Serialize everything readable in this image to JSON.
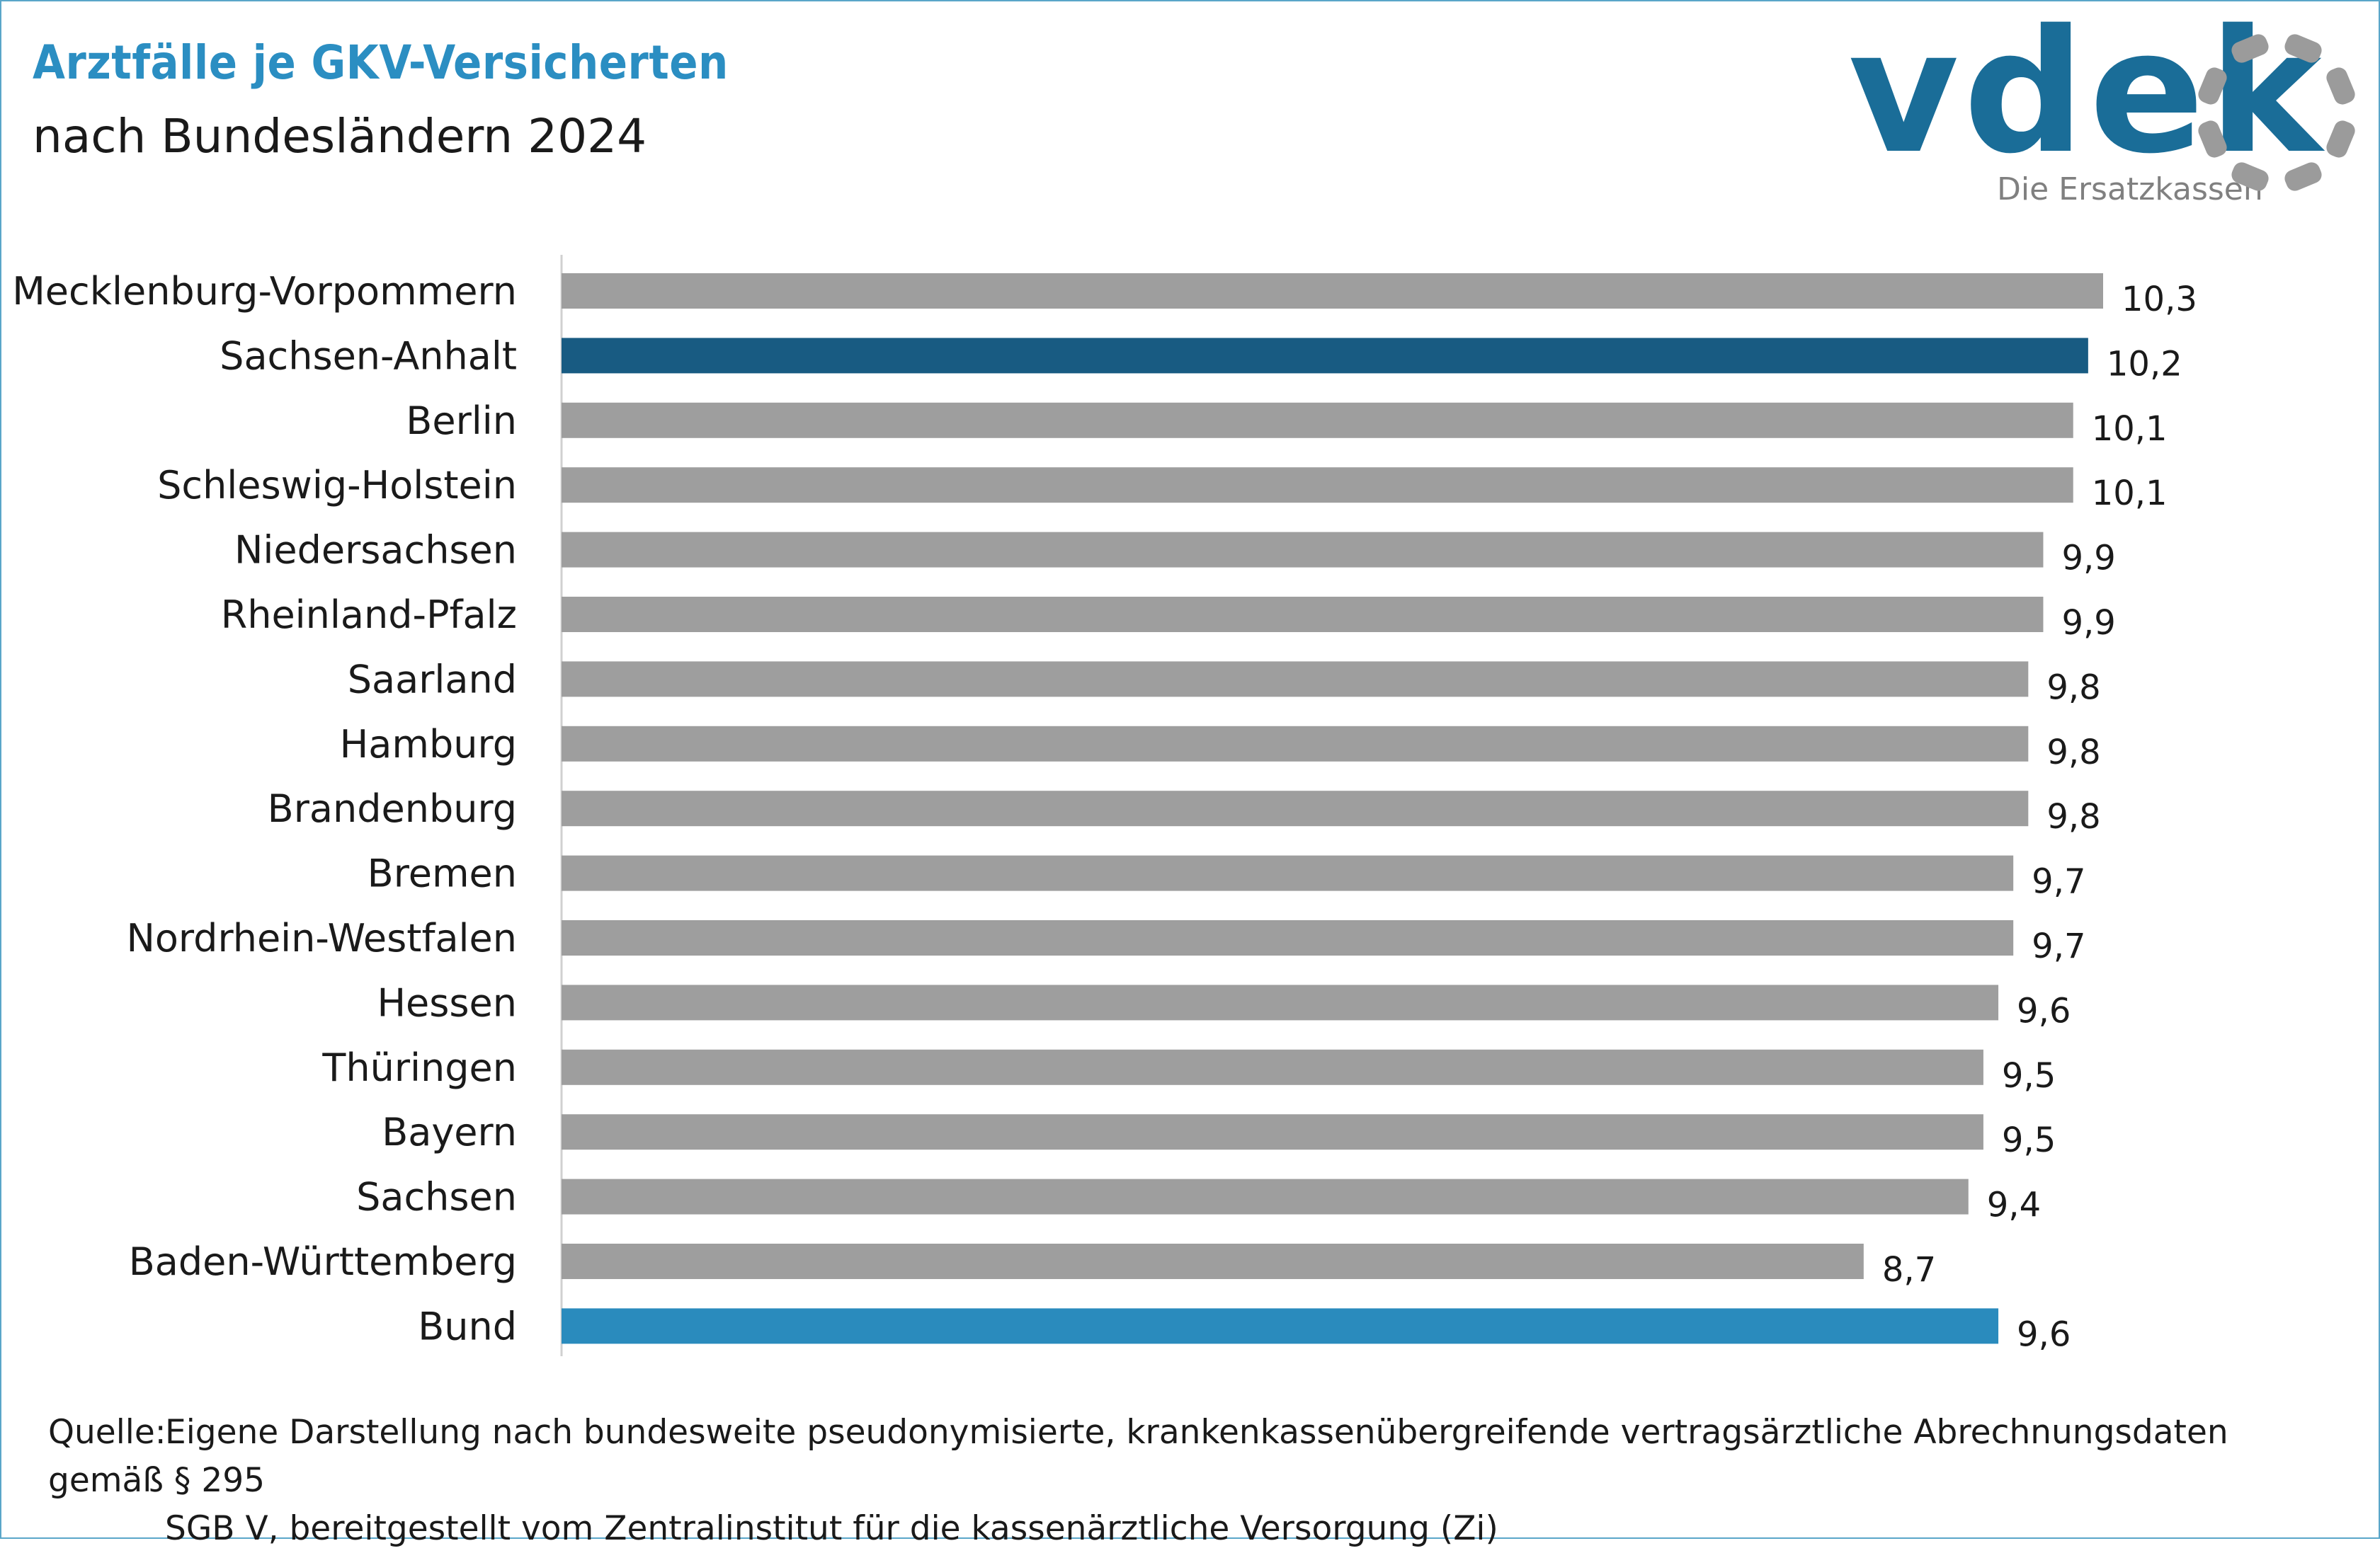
{
  "header": {
    "title": "Arztfälle je GKV-Versicherten",
    "subtitle": "nach Bundesländern 2024"
  },
  "logo": {
    "wordmark": "vdek",
    "tagline": "Die Ersatzkassen",
    "colors": {
      "wordmark": "#1a6d98",
      "ring": "#9b9b9b"
    }
  },
  "source": {
    "label": "Quelle:",
    "line1": "Eigene Darstellung nach bundesweite pseudonymisierte, krankenkassenübergreifende vertragsärztliche Abrechnungsdaten gemäß § 295",
    "line2": "SGB V, bereitgestellt vom Zentralinstitut für die kassenärztliche Versorgung (Zi)"
  },
  "chart_data": {
    "type": "bar",
    "orientation": "horizontal",
    "title": "Arztfälle je GKV-Versicherten",
    "subtitle": "nach Bundesländern 2024",
    "xlim": [
      0,
      10.3
    ],
    "grid": false,
    "legend": "none",
    "categories": [
      "Mecklenburg-Vorpommern",
      "Sachsen-Anhalt",
      "Berlin",
      "Schleswig-Holstein",
      "Niedersachsen",
      "Rheinland-Pfalz",
      "Saarland",
      "Hamburg",
      "Brandenburg",
      "Bremen",
      "Nordrhein-Westfalen",
      "Hessen",
      "Thüringen",
      "Bayern",
      "Sachsen",
      "Baden-Württemberg",
      "Bund"
    ],
    "values": [
      10.3,
      10.2,
      10.1,
      10.1,
      9.9,
      9.9,
      9.8,
      9.8,
      9.8,
      9.7,
      9.7,
      9.6,
      9.5,
      9.5,
      9.4,
      8.7,
      9.6
    ],
    "value_labels": [
      "10,3",
      "10,2",
      "10,1",
      "10,1",
      "9,9",
      "9,9",
      "9,8",
      "9,8",
      "9,8",
      "9,7",
      "9,7",
      "9,6",
      "9,5",
      "9,5",
      "9,4",
      "8,7",
      "9,6"
    ],
    "bar_colors": [
      "#9e9e9e",
      "#185b82",
      "#9e9e9e",
      "#9e9e9e",
      "#9e9e9e",
      "#9e9e9e",
      "#9e9e9e",
      "#9e9e9e",
      "#9e9e9e",
      "#9e9e9e",
      "#9e9e9e",
      "#9e9e9e",
      "#9e9e9e",
      "#9e9e9e",
      "#9e9e9e",
      "#9e9e9e",
      "#2a8bbd"
    ]
  }
}
